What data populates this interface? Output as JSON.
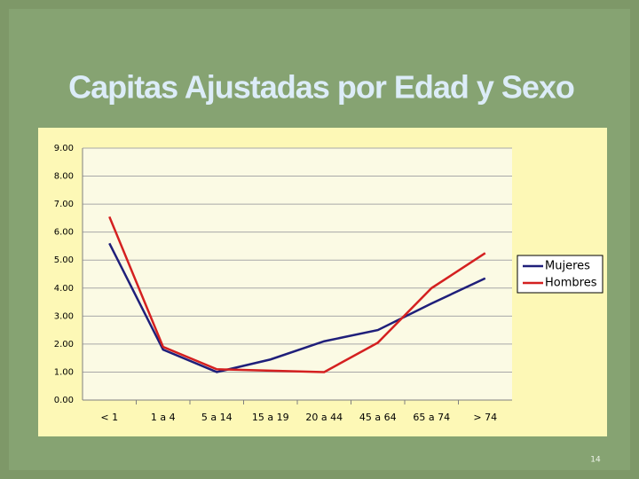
{
  "chart_data": {
    "type": "line",
    "title": "Capitas Ajustadas por Edad y Sexo",
    "categories": [
      "< 1",
      "1 a 4",
      "5 a 14",
      "15 a 19",
      "20 a 44",
      "45 a 64",
      "65 a 74",
      "> 74"
    ],
    "series": [
      {
        "name": "Mujeres",
        "color": "#1f1f7a",
        "values": [
          5.6,
          1.8,
          1.0,
          1.45,
          2.1,
          2.5,
          3.45,
          4.35
        ]
      },
      {
        "name": "Hombres",
        "color": "#d42020",
        "values": [
          6.55,
          1.9,
          1.1,
          1.05,
          1.0,
          2.05,
          4.0,
          5.25
        ]
      }
    ],
    "ylim": [
      0,
      9
    ],
    "yticks": [
      {
        "value": 0,
        "label": "0.00"
      },
      {
        "value": 1,
        "label": "1.00"
      },
      {
        "value": 2,
        "label": "2.00"
      },
      {
        "value": 3,
        "label": "3.00"
      },
      {
        "value": 4,
        "label": "4.00"
      },
      {
        "value": 5,
        "label": "5.00"
      },
      {
        "value": 6,
        "label": "6.00"
      },
      {
        "value": 7,
        "label": "7.00"
      },
      {
        "value": 8,
        "label": "8.00"
      },
      {
        "value": 9,
        "label": "9.00"
      }
    ],
    "grid": true,
    "legend": "right"
  },
  "slide_number": "14"
}
